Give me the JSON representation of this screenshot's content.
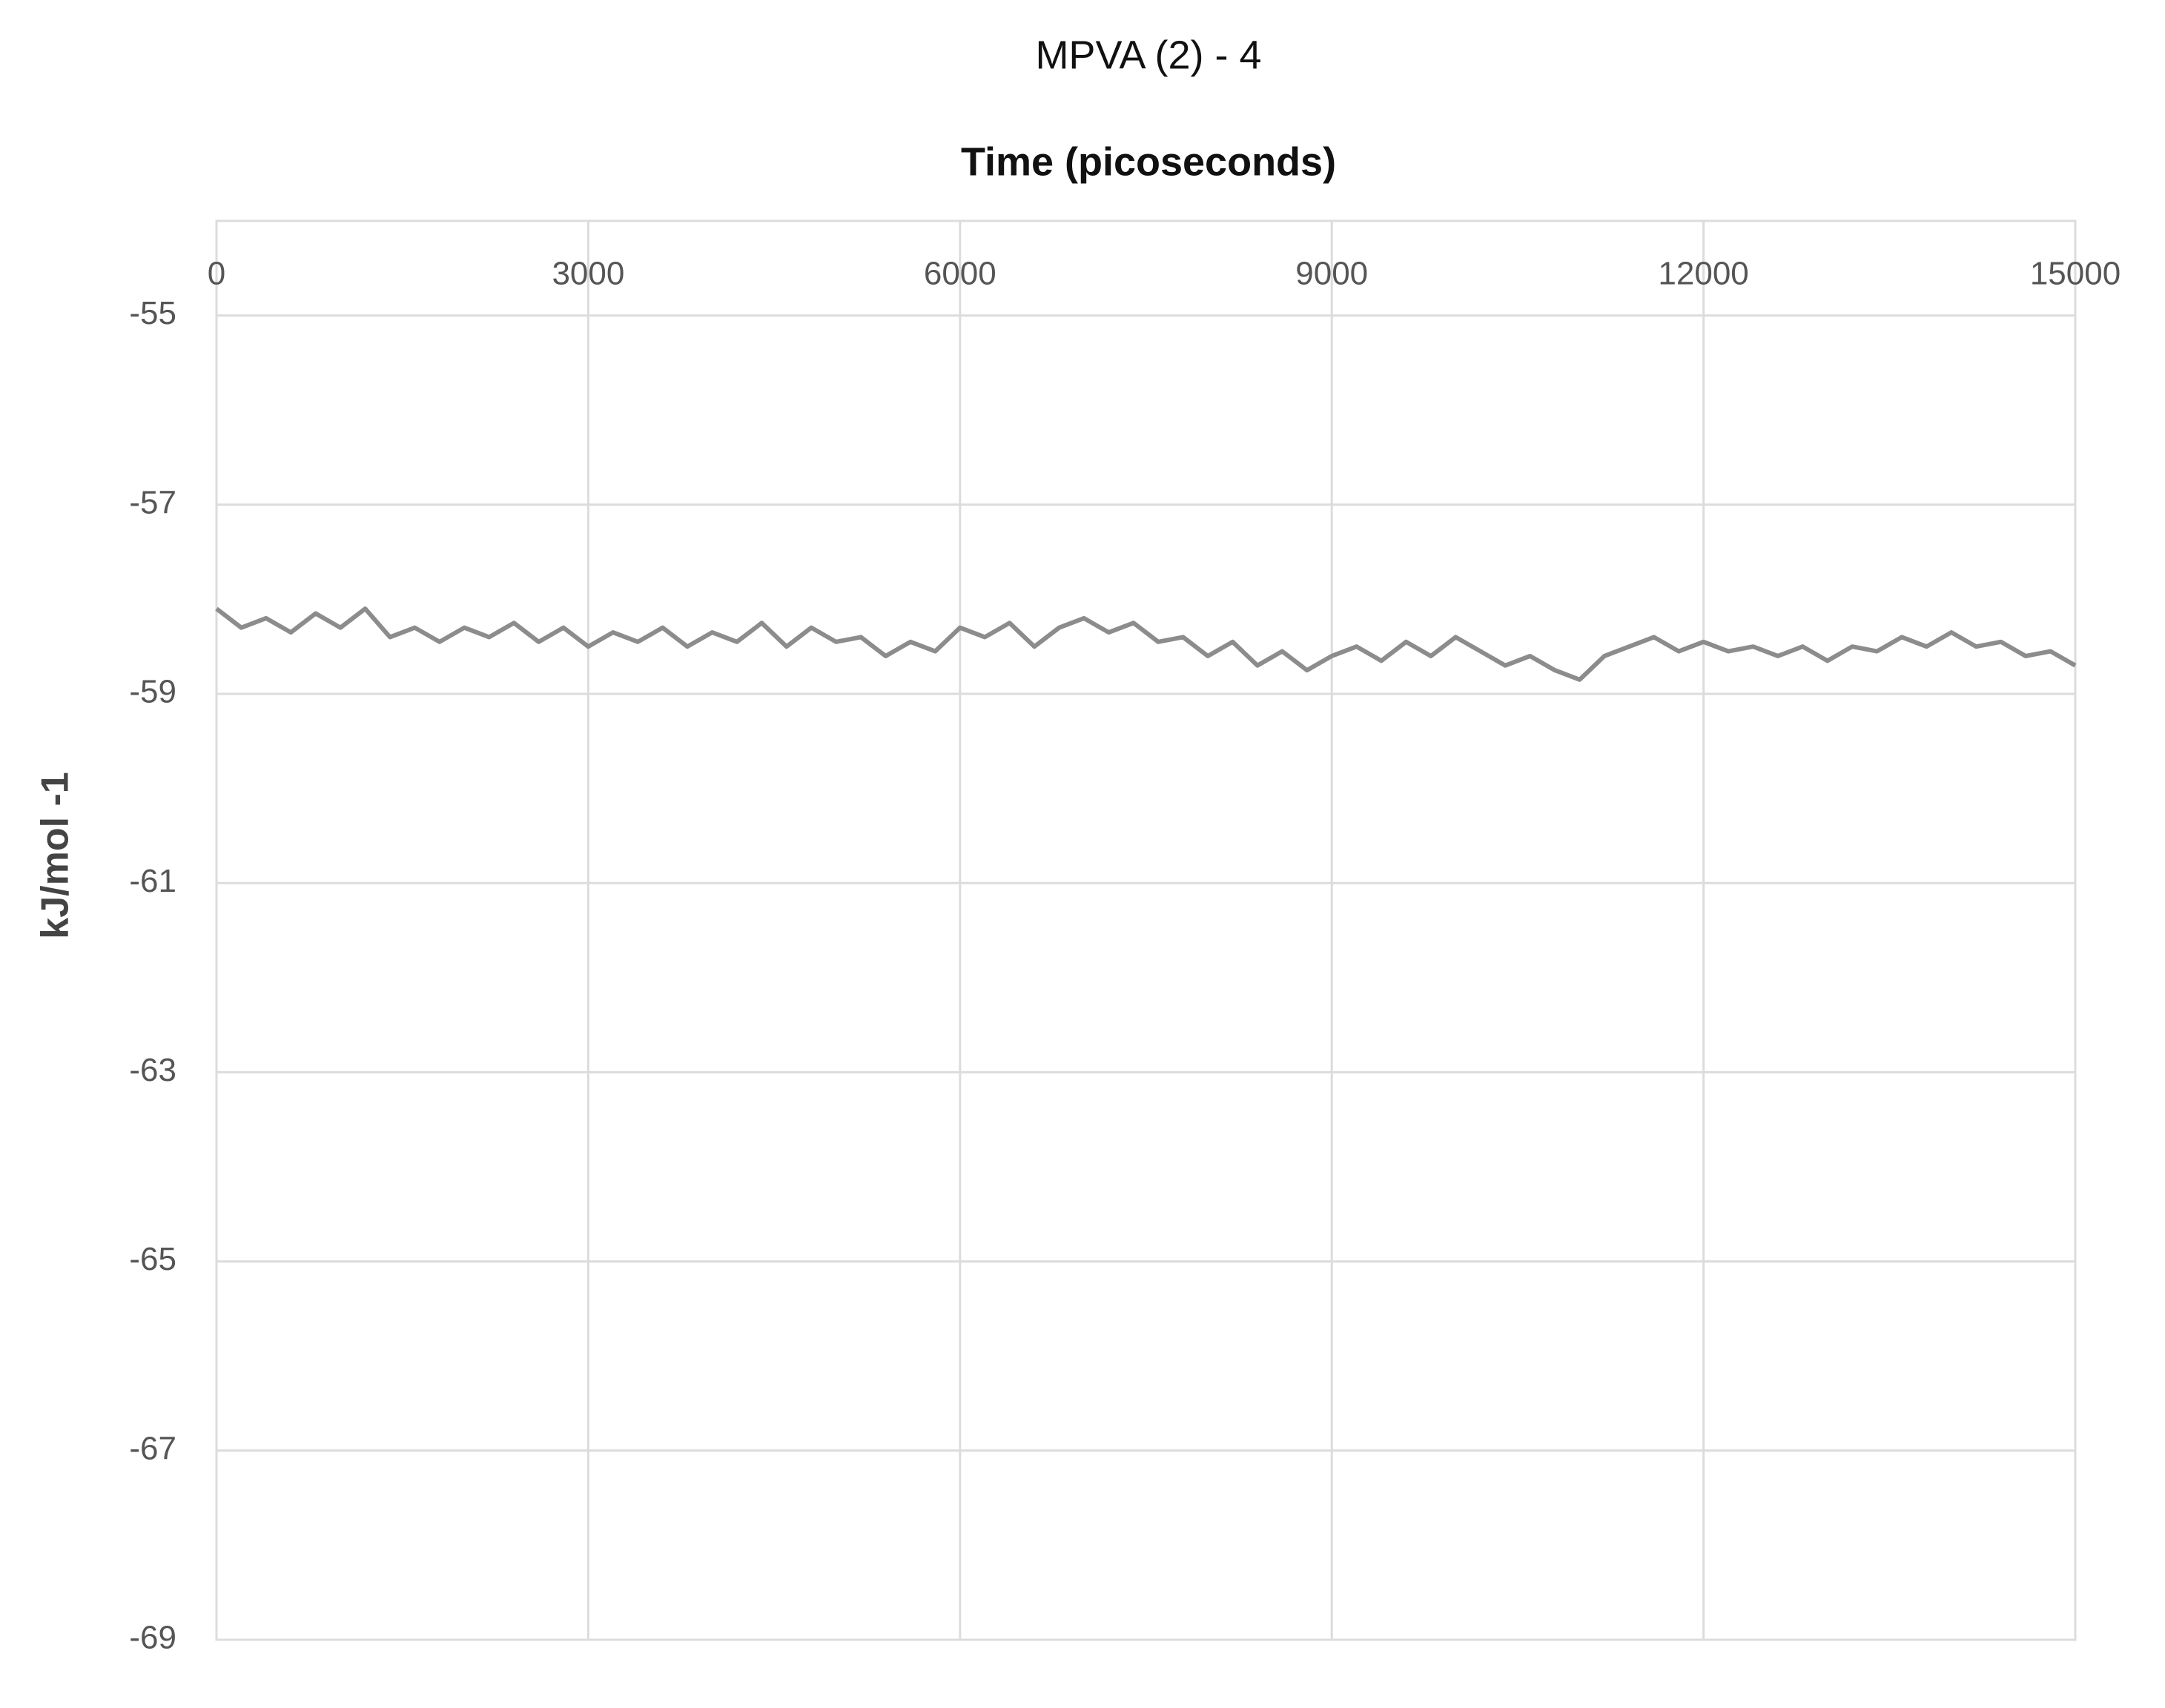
{
  "chart_data": {
    "type": "line",
    "title": "MPVA (2) - 4",
    "x_label": "Time (picoseconds)",
    "y_label": "kJ/mol -1",
    "x": [
      0,
      200,
      400,
      600,
      800,
      1000,
      1200,
      1400,
      1600,
      1800,
      2000,
      2200,
      2400,
      2600,
      2800,
      3000,
      3200,
      3400,
      3600,
      3800,
      4000,
      4200,
      4400,
      4600,
      4800,
      5000,
      5200,
      5400,
      5600,
      5800,
      6000,
      6200,
      6400,
      6600,
      6800,
      7000,
      7200,
      7400,
      7600,
      7800,
      8000,
      8200,
      8400,
      8600,
      8800,
      9000,
      9200,
      9400,
      9600,
      9800,
      10000,
      10200,
      10400,
      10600,
      10800,
      11000,
      11200,
      11400,
      11600,
      11800,
      12000,
      12200,
      12400,
      12600,
      12800,
      13000,
      13200,
      13400,
      13600,
      13800,
      14000,
      14200,
      14400,
      14600,
      14800,
      15000
    ],
    "series": [
      {
        "name": "MPVA (2) - 4",
        "color": "#8c8c8c",
        "values": [
          -58.1,
          -58.3,
          -58.2,
          -58.35,
          -58.15,
          -58.3,
          -58.1,
          -58.4,
          -58.3,
          -58.45,
          -58.3,
          -58.4,
          -58.25,
          -58.45,
          -58.3,
          -58.5,
          -58.35,
          -58.45,
          -58.3,
          -58.5,
          -58.35,
          -58.45,
          -58.25,
          -58.5,
          -58.3,
          -58.45,
          -58.4,
          -58.6,
          -58.45,
          -58.55,
          -58.3,
          -58.4,
          -58.25,
          -58.5,
          -58.3,
          -58.2,
          -58.35,
          -58.25,
          -58.45,
          -58.4,
          -58.6,
          -58.45,
          -58.7,
          -58.55,
          -58.75,
          -58.6,
          -58.5,
          -58.65,
          -58.45,
          -58.6,
          -58.4,
          -58.55,
          -58.7,
          -58.6,
          -58.75,
          -58.85,
          -58.6,
          -58.5,
          -58.4,
          -58.55,
          -58.45,
          -58.55,
          -58.5,
          -58.6,
          -58.5,
          -58.65,
          -58.5,
          -58.55,
          -58.4,
          -58.5,
          -58.35,
          -58.5,
          -58.45,
          -58.6,
          -58.55,
          -58.7
        ]
      }
    ],
    "xlim": [
      0,
      15000
    ],
    "xticks": [
      0,
      3000,
      6000,
      9000,
      12000,
      15000
    ],
    "ylim": [
      -69,
      -54
    ],
    "yticks": [
      -55,
      -57,
      -59,
      -61,
      -63,
      -65,
      -67,
      -69
    ],
    "grid": true
  }
}
